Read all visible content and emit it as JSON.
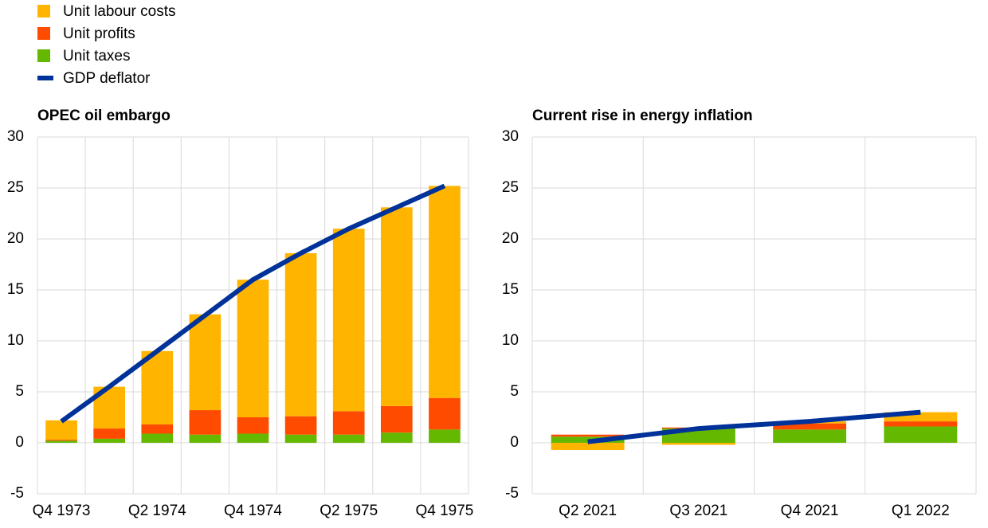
{
  "chart_data": [
    {
      "type": "bar",
      "stacked": true,
      "title": "OPEC oil embargo",
      "categories": [
        "Q4 1973",
        null,
        "Q2 1974",
        null,
        "Q4 1974",
        null,
        "Q2 1975",
        null,
        "Q4 1975"
      ],
      "series": [
        {
          "name": "Unit labour costs",
          "color": "#ffb400",
          "values": [
            1.9,
            4.1,
            7.2,
            9.4,
            13.5,
            16.0,
            17.9,
            19.5,
            20.8
          ]
        },
        {
          "name": "Unit profits",
          "color": "#ff4b00",
          "values": [
            0.1,
            1.0,
            0.9,
            2.4,
            1.6,
            1.8,
            2.3,
            2.6,
            3.1
          ]
        },
        {
          "name": "Unit taxes",
          "color": "#65b800",
          "values": [
            0.2,
            0.4,
            0.9,
            0.8,
            0.9,
            0.8,
            0.8,
            1.0,
            1.3
          ]
        },
        {
          "name": "GDP deflator",
          "color": "#003299",
          "type": "line",
          "values": [
            2.1,
            5.5,
            9.0,
            12.5,
            16.0,
            18.6,
            21.0,
            23.1,
            25.2
          ]
        }
      ],
      "ylim": [
        -5,
        30
      ],
      "yticks": [
        -5,
        0,
        5,
        10,
        15,
        20,
        25,
        30
      ],
      "grid": true
    },
    {
      "type": "bar",
      "stacked": true,
      "title": "Current rise in energy inflation",
      "categories": [
        "Q2 2021",
        "Q3 2021",
        "Q4 2021",
        "Q1 2022"
      ],
      "series": [
        {
          "name": "Unit labour costs",
          "color": "#ffb400",
          "values": [
            -0.7,
            -0.2,
            0.2,
            0.9
          ]
        },
        {
          "name": "Unit profits",
          "color": "#ff4b00",
          "values": [
            0.2,
            0.1,
            0.6,
            0.5
          ]
        },
        {
          "name": "Unit taxes",
          "color": "#65b800",
          "values": [
            0.6,
            1.4,
            1.3,
            1.6
          ]
        },
        {
          "name": "GDP deflator",
          "color": "#003299",
          "type": "line",
          "values": [
            0.1,
            1.4,
            2.1,
            3.0
          ]
        }
      ],
      "ylim": [
        -5,
        30
      ],
      "yticks": [
        -5,
        0,
        5,
        10,
        15,
        20,
        25,
        30
      ],
      "grid": true
    }
  ]
}
